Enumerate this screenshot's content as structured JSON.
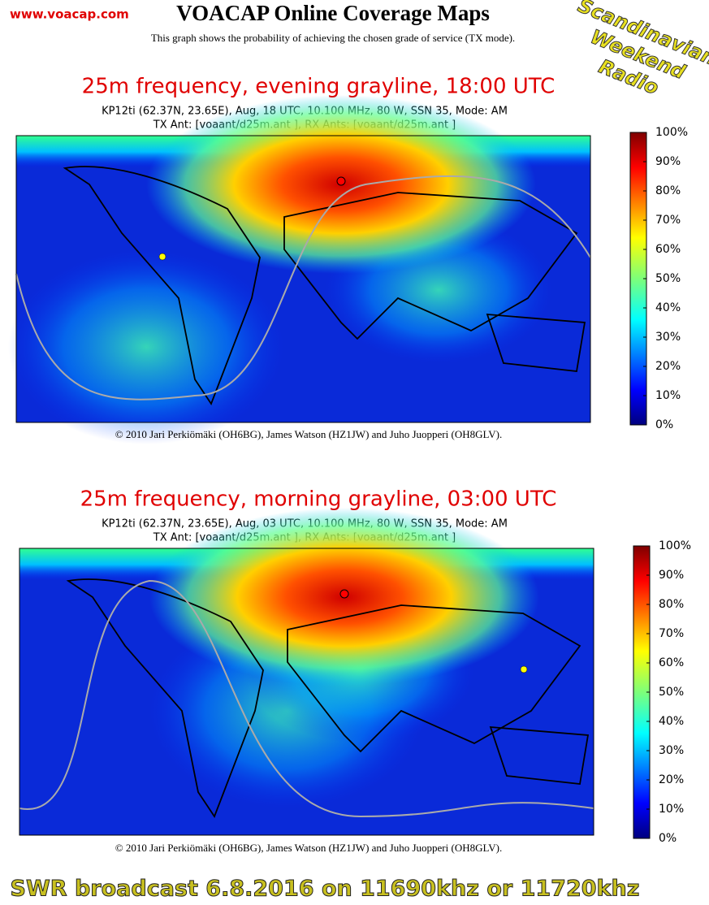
{
  "header": {
    "site": "www.voacap.com",
    "title": "VOACAP Online Coverage Maps",
    "subtitle": "This graph shows the probability of achieving the chosen grade of service (TX mode)."
  },
  "badge": [
    "Scandinavian",
    "Weekend",
    "Radio"
  ],
  "maps": [
    {
      "title": "25m frequency, evening grayline, 18:00 UTC",
      "info": [
        "KP12ti (62.37N,  23.65E), Aug, 18 UTC, 10.100 MHz, 80 W, SSN 35, Mode: AM",
        "TX Ant: [voaant/d25m.ant      ], RX Ants: [voaant/d25m.ant      ]"
      ],
      "colorbar_ticks": [
        {
          "value": 0,
          "label": "0%"
        },
        {
          "value": 10,
          "label": "10%"
        },
        {
          "value": 20,
          "label": "20%"
        },
        {
          "value": 30,
          "label": "30%"
        },
        {
          "value": 40,
          "label": "40%"
        },
        {
          "value": 50,
          "label": "50%"
        },
        {
          "value": 60,
          "label": "60%"
        },
        {
          "value": 70,
          "label": "70%"
        },
        {
          "value": 80,
          "label": "80%"
        },
        {
          "value": 90,
          "label": "90%"
        },
        {
          "value": 100,
          "label": "100%"
        }
      ],
      "copyright": "© 2010 Jari Perkiömäki (OH6BG), James Watson (HZ1JW) and Juho Juopperi (OH8GLV)."
    },
    {
      "title": "25m frequency, morning grayline, 03:00 UTC",
      "info": [
        "KP12ti (62.37N,  23.65E), Aug, 03 UTC, 10.100 MHz, 80 W, SSN 35, Mode: AM",
        "TX Ant: [voaant/d25m.ant      ], RX Ants: [voaant/d25m.ant      ]"
      ],
      "colorbar_ticks": [
        {
          "value": 0,
          "label": "0%"
        },
        {
          "value": 10,
          "label": "10%"
        },
        {
          "value": 20,
          "label": "20%"
        },
        {
          "value": 30,
          "label": "30%"
        },
        {
          "value": 40,
          "label": "40%"
        },
        {
          "value": 50,
          "label": "50%"
        },
        {
          "value": 60,
          "label": "60%"
        },
        {
          "value": 70,
          "label": "70%"
        },
        {
          "value": 80,
          "label": "80%"
        },
        {
          "value": 90,
          "label": "90%"
        },
        {
          "value": 100,
          "label": "100%"
        }
      ],
      "copyright": "© 2010 Jari Perkiömäki (OH6BG), James Watson (HZ1JW) and Juho Juopperi (OH8GLV)."
    }
  ],
  "footer": "SWR broadcast 6.8.2016  on 11690khz or 11720khz"
}
